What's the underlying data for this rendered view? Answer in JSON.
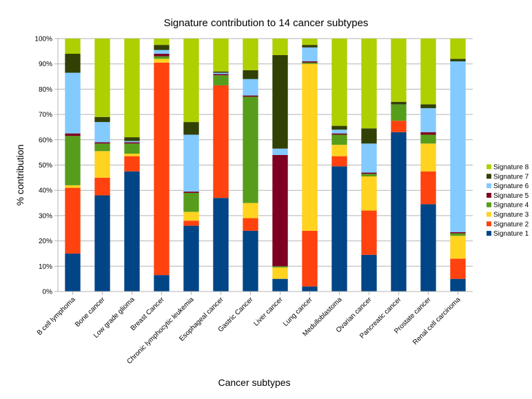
{
  "chart_data": {
    "type": "bar",
    "stacked": true,
    "title": "Signature contribution to 14 cancer subtypes",
    "xlabel": "Cancer subtypes",
    "ylabel": "% contribution",
    "ylim": [
      0,
      100
    ],
    "yticks": [
      "0%",
      "10%",
      "20%",
      "30%",
      "40%",
      "50%",
      "60%",
      "70%",
      "80%",
      "90%",
      "100%"
    ],
    "legend_position": "right",
    "categories": [
      "B cell lymphoma",
      "Bone cancer",
      "Low grade glioma",
      "Breast Cancer",
      "Chronic lymphocytic leukemia",
      "Esophageal cancer",
      "Gastric Cancer",
      "Liver cancer",
      "Lung cancer",
      "Medulloblastoma",
      "Ovarian cancer",
      "Pancreatic cancer",
      "Prostate cancer",
      "Renal cell carcinoma"
    ],
    "series": [
      {
        "name": "Signature 1",
        "color": "#004586",
        "values": [
          15,
          38,
          47.5,
          6.5,
          26,
          37,
          24,
          5,
          2,
          49.5,
          14.5,
          63,
          34.5,
          5
        ]
      },
      {
        "name": "Signature 2",
        "color": "#ff420e",
        "values": [
          26,
          7,
          6,
          84,
          2,
          44.5,
          5,
          0,
          22,
          4,
          17.5,
          4.5,
          13,
          8
        ]
      },
      {
        "name": "Signature 3",
        "color": "#ffd320",
        "values": [
          1,
          10.5,
          1,
          1.5,
          3.5,
          0,
          6,
          4.5,
          66,
          4.5,
          13.5,
          0,
          11,
          9
        ]
      },
      {
        "name": "Signature 4",
        "color": "#579d1c",
        "values": [
          19.5,
          3,
          4,
          1,
          7.5,
          4,
          42,
          0.5,
          0.5,
          4,
          1,
          6.5,
          3.5,
          1
        ]
      },
      {
        "name": "Signature 5",
        "color": "#7e0021",
        "values": [
          1,
          0.5,
          0.5,
          1,
          0.5,
          0.5,
          0.5,
          44,
          0.5,
          0.5,
          0.5,
          0,
          1,
          0.5
        ]
      },
      {
        "name": "Signature 6",
        "color": "#83caff",
        "values": [
          24,
          8,
          0.5,
          1.5,
          22.5,
          0.5,
          6.5,
          2.5,
          5.5,
          1.5,
          11.5,
          0,
          9.5,
          67.5
        ]
      },
      {
        "name": "Signature 7",
        "color": "#314004",
        "values": [
          7.5,
          2,
          1.5,
          2,
          5,
          0.5,
          3.5,
          37,
          1,
          1.5,
          6,
          1,
          1.5,
          1
        ]
      },
      {
        "name": "Signature 8",
        "color": "#aecf00",
        "values": [
          6,
          31,
          39,
          2.5,
          33,
          13,
          12.5,
          6.5,
          2.5,
          34.5,
          35.5,
          25,
          26,
          8
        ]
      }
    ]
  }
}
